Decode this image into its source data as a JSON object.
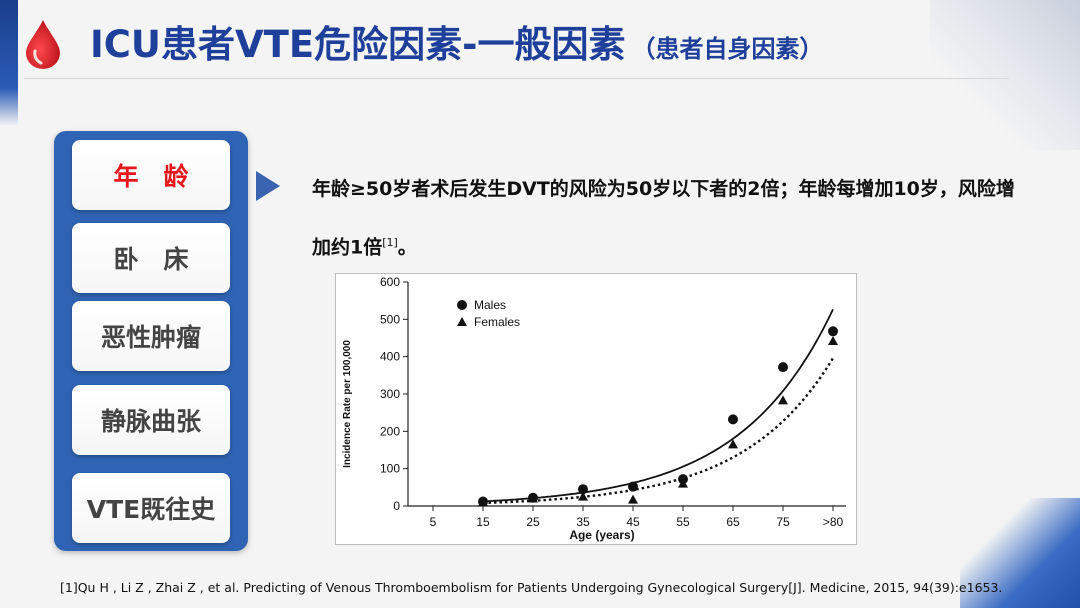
{
  "header": {
    "title": "ICU患者VTE危险因素-一般因素",
    "subtitle": "（患者自身因素）"
  },
  "sidebar": {
    "items": [
      {
        "label": "年　龄",
        "active": true
      },
      {
        "label": "卧　床",
        "active": false
      },
      {
        "label": "恶性肿瘤",
        "active": false
      },
      {
        "label": "静脉曲张",
        "active": false
      },
      {
        "label": "VTE既往史",
        "active": false
      }
    ]
  },
  "description": {
    "text": "年龄≥50岁者术后发生DVT的风险为50岁以下者的2倍；年龄每增加10岁，风险增加约1倍",
    "ref": "[1]",
    "tail": "。"
  },
  "footnote": "[1]Qu H , Li Z , Zhai Z , et al. Predicting of Venous Thromboembolism for Patients Undergoing Gynecological Surgery[J]. Medicine, 2015, 94(39):e1653.",
  "colors": {
    "title": "#1e3f9a",
    "panel": "#2f64b4",
    "active_item": "#e6171d",
    "drop": "#d4141b"
  },
  "chart_data": {
    "type": "scatter",
    "xlabel": "Age (years)",
    "ylabel": "Incidence Rate per 100,000",
    "categories": [
      "5",
      "15",
      "25",
      "35",
      "45",
      "55",
      "65",
      "75",
      ">80"
    ],
    "ylim": [
      0,
      600
    ],
    "yticks": [
      "0",
      "100",
      "200",
      "300",
      "400",
      "500",
      "600"
    ],
    "legend": "top-left",
    "series": [
      {
        "name": "Males",
        "marker": "circle",
        "line": "solid",
        "values": [
          null,
          12,
          22,
          45,
          52,
          72,
          232,
          372,
          468
        ]
      },
      {
        "name": "Females",
        "marker": "triangle",
        "line": "dotted",
        "values": [
          null,
          10,
          20,
          25,
          17,
          60,
          165,
          283,
          442
        ]
      }
    ]
  }
}
